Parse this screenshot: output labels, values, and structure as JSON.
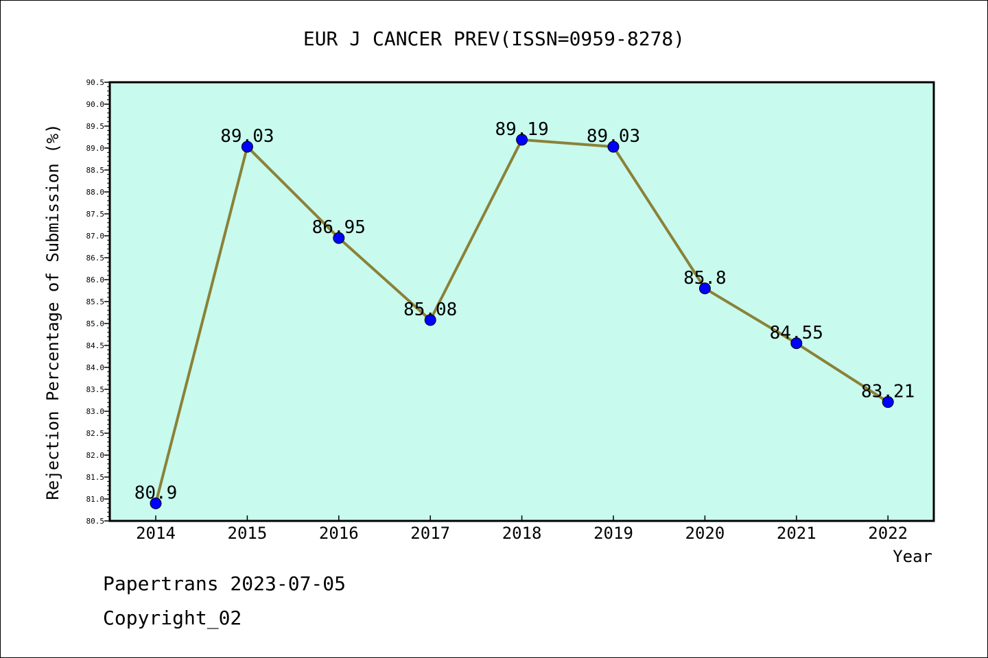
{
  "chart_data": {
    "type": "line",
    "title": "EUR J CANCER PREV(ISSN=0959-8278)",
    "xlabel": "Year",
    "ylabel": "Rejection Percentage of Submission (%)",
    "categories": [
      "2014",
      "2015",
      "2016",
      "2017",
      "2018",
      "2019",
      "2020",
      "2021",
      "2022"
    ],
    "series": [
      {
        "values": [
          80.9,
          89.03,
          86.95,
          85.08,
          89.19,
          89.03,
          85.8,
          84.55,
          83.21
        ],
        "labels": [
          "80.9",
          "89.03",
          "86.95",
          "85.08",
          "89.19",
          "89.03",
          "85.8",
          "84.55",
          "83.21"
        ]
      }
    ],
    "ylim": [
      80.5,
      90.5
    ],
    "yticks": [
      "80.5",
      "81.0",
      "81.5",
      "82.0",
      "82.5",
      "83.0",
      "83.5",
      "84.0",
      "84.5",
      "85.0",
      "85.5",
      "86.0",
      "86.5",
      "87.0",
      "87.5",
      "88.0",
      "88.5",
      "89.0",
      "89.5",
      "90.0",
      "90.5"
    ],
    "grid": false,
    "plot_background": "#c8faee",
    "line_color": "#8b8137",
    "marker_color": "#0000ff"
  },
  "footer": {
    "line1": "Papertrans 2023-07-05",
    "line2": "Copyright_02"
  }
}
